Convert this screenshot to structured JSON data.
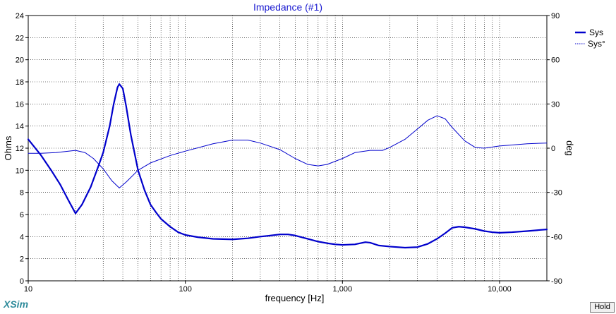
{
  "colors": {
    "accent": "#0000cc",
    "title": "#1a1ad0",
    "grid": "#000000",
    "brand": "#2d8a9a"
  },
  "app": {
    "brand": "XSim",
    "hold_label": "Hold"
  },
  "chart_data": {
    "type": "line",
    "title": "Impedance (#1)",
    "xlabel": "frequency [Hz]",
    "ylabel": "Ohms",
    "y2label": "deg",
    "xscale": "log",
    "xlim": [
      10,
      20000
    ],
    "ylim": [
      0,
      24
    ],
    "y2lim": [
      -90,
      90
    ],
    "grid": true,
    "legend_position": "top-right",
    "x_tick_labels": [
      {
        "value": 10,
        "label": "10"
      },
      {
        "value": 100,
        "label": "100"
      },
      {
        "value": 1000,
        "label": "1,000"
      },
      {
        "value": 10000,
        "label": "10,000"
      }
    ],
    "y_ticks": [
      0,
      2,
      4,
      6,
      8,
      10,
      12,
      14,
      16,
      18,
      20,
      22,
      24
    ],
    "y2_ticks": [
      -90,
      -60,
      -30,
      0,
      30,
      60,
      90
    ],
    "series": [
      {
        "name": "Sys",
        "axis": "left",
        "style": "solid",
        "points": [
          [
            10,
            12.8
          ],
          [
            12,
            11.4
          ],
          [
            14,
            10.0
          ],
          [
            16,
            8.7
          ],
          [
            18,
            7.3
          ],
          [
            20,
            6.1
          ],
          [
            22,
            6.9
          ],
          [
            25,
            8.5
          ],
          [
            28,
            10.4
          ],
          [
            30,
            11.6
          ],
          [
            33,
            14.0
          ],
          [
            35,
            16.0
          ],
          [
            37,
            17.5
          ],
          [
            38,
            17.8
          ],
          [
            40,
            17.4
          ],
          [
            42,
            15.8
          ],
          [
            45,
            13.2
          ],
          [
            50,
            10.0
          ],
          [
            55,
            8.2
          ],
          [
            60,
            6.9
          ],
          [
            65,
            6.2
          ],
          [
            70,
            5.6
          ],
          [
            80,
            4.9
          ],
          [
            90,
            4.4
          ],
          [
            100,
            4.15
          ],
          [
            120,
            3.95
          ],
          [
            150,
            3.8
          ],
          [
            200,
            3.75
          ],
          [
            250,
            3.85
          ],
          [
            300,
            4.0
          ],
          [
            350,
            4.1
          ],
          [
            400,
            4.2
          ],
          [
            450,
            4.2
          ],
          [
            500,
            4.1
          ],
          [
            600,
            3.8
          ],
          [
            700,
            3.55
          ],
          [
            800,
            3.4
          ],
          [
            900,
            3.3
          ],
          [
            1000,
            3.25
          ],
          [
            1200,
            3.3
          ],
          [
            1400,
            3.5
          ],
          [
            1500,
            3.45
          ],
          [
            1700,
            3.2
          ],
          [
            2000,
            3.1
          ],
          [
            2500,
            3.0
          ],
          [
            3000,
            3.05
          ],
          [
            3500,
            3.35
          ],
          [
            4000,
            3.8
          ],
          [
            4500,
            4.3
          ],
          [
            5000,
            4.8
          ],
          [
            5500,
            4.9
          ],
          [
            6000,
            4.85
          ],
          [
            7000,
            4.7
          ],
          [
            8000,
            4.5
          ],
          [
            9000,
            4.4
          ],
          [
            10000,
            4.35
          ],
          [
            12000,
            4.4
          ],
          [
            15000,
            4.5
          ],
          [
            18000,
            4.6
          ],
          [
            20000,
            4.65
          ]
        ]
      },
      {
        "name": "Sys°",
        "axis": "right",
        "style": "dotted",
        "points": [
          [
            10,
            -3.5
          ],
          [
            12,
            -3.5
          ],
          [
            15,
            -3
          ],
          [
            20,
            -1.5
          ],
          [
            23,
            -3
          ],
          [
            26,
            -7
          ],
          [
            30,
            -14
          ],
          [
            34,
            -22
          ],
          [
            38,
            -27
          ],
          [
            42,
            -23
          ],
          [
            50,
            -15
          ],
          [
            60,
            -10
          ],
          [
            80,
            -5
          ],
          [
            100,
            -2
          ],
          [
            150,
            3
          ],
          [
            200,
            5.5
          ],
          [
            250,
            5.5
          ],
          [
            300,
            3.5
          ],
          [
            400,
            -1
          ],
          [
            500,
            -7
          ],
          [
            600,
            -11
          ],
          [
            700,
            -12
          ],
          [
            800,
            -11
          ],
          [
            1000,
            -7
          ],
          [
            1200,
            -3
          ],
          [
            1500,
            -1.5
          ],
          [
            1800,
            -1.5
          ],
          [
            2000,
            0.5
          ],
          [
            2500,
            6
          ],
          [
            3000,
            13
          ],
          [
            3500,
            19
          ],
          [
            4000,
            22
          ],
          [
            4500,
            20
          ],
          [
            5000,
            14
          ],
          [
            6000,
            5
          ],
          [
            7000,
            0.5
          ],
          [
            8000,
            0
          ],
          [
            10000,
            1.5
          ],
          [
            15000,
            3
          ],
          [
            20000,
            3.5
          ]
        ]
      }
    ]
  }
}
